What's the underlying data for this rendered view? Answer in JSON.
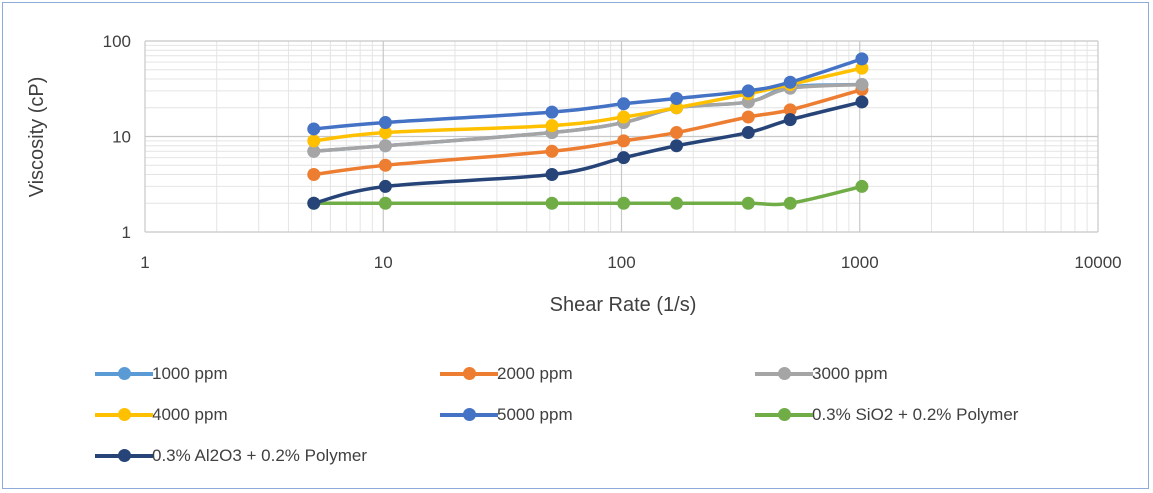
{
  "chart_data": {
    "type": "line",
    "title": "",
    "xlabel": "Shear Rate (1/s)",
    "ylabel": "Viscosity (cP)",
    "xscale": "log",
    "yscale": "log",
    "xlim": [
      1,
      10000
    ],
    "ylim": [
      1,
      100
    ],
    "x_ticks": [
      "1",
      "10",
      "100",
      "1000",
      "10000"
    ],
    "y_ticks": [
      "1",
      "10",
      "100"
    ],
    "grid": true,
    "legend_position": "bottom",
    "x": [
      5.11,
      10.21,
      51.07,
      102.1,
      170.2,
      340.5,
      510.7,
      1021
    ],
    "series": [
      {
        "name": "1000 ppm",
        "color": "#5b9bd5",
        "values": [
          7,
          8,
          11,
          14,
          20,
          23,
          33,
          35
        ]
      },
      {
        "name": "2000 ppm",
        "color": "#ed7d31",
        "values": [
          4,
          5,
          7,
          9,
          11,
          16,
          19,
          31
        ]
      },
      {
        "name": "3000 ppm",
        "color": "#a5a5a5",
        "values": [
          7,
          8,
          11,
          14,
          20,
          23,
          32,
          35
        ]
      },
      {
        "name": "4000 ppm",
        "color": "#ffc000",
        "values": [
          9,
          11,
          13,
          16,
          20,
          28,
          35,
          52
        ]
      },
      {
        "name": "5000 ppm",
        "color": "#4472c4",
        "values": [
          12,
          14,
          18,
          22,
          25,
          30,
          37,
          65
        ]
      },
      {
        "name": "0.3% SiO2 + 0.2% Polymer",
        "color": "#70ad47",
        "values": [
          2,
          2,
          2,
          2,
          2,
          2,
          2,
          3
        ]
      },
      {
        "name": "0.3% Al2O3 + 0.2% Polymer",
        "color": "#264478",
        "values": [
          2,
          3,
          4,
          6,
          8,
          11,
          15,
          23
        ]
      }
    ]
  }
}
